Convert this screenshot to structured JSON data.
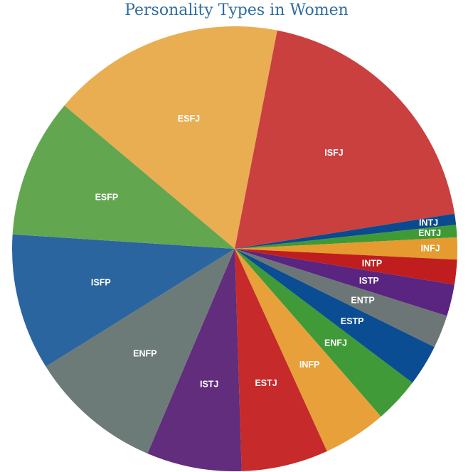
{
  "chart_data": {
    "type": "pie",
    "title": "Personality Types in Women",
    "slices": [
      {
        "label": "ISFJ",
        "value": 19.4,
        "color": "#c9403f"
      },
      {
        "label": "INTJ",
        "value": 0.8,
        "color": "#0b4a90"
      },
      {
        "label": "ENTJ",
        "value": 0.9,
        "color": "#3f9a35"
      },
      {
        "label": "INFJ",
        "value": 1.6,
        "color": "#e59b2f"
      },
      {
        "label": "INTP",
        "value": 1.8,
        "color": "#c01e1e"
      },
      {
        "label": "ISTP",
        "value": 2.3,
        "color": "#5a2580"
      },
      {
        "label": "ENTP",
        "value": 2.4,
        "color": "#6c7676"
      },
      {
        "label": "ESTP",
        "value": 3.0,
        "color": "#0a4d92"
      },
      {
        "label": "ENFJ",
        "value": 3.3,
        "color": "#3f9a37"
      },
      {
        "label": "INFP",
        "value": 4.6,
        "color": "#e8a13a"
      },
      {
        "label": "ESTJ",
        "value": 6.3,
        "color": "#c62a2a"
      },
      {
        "label": "ISTJ",
        "value": 6.9,
        "color": "#612d7c"
      },
      {
        "label": "ENFP",
        "value": 9.7,
        "color": "#6d7b78"
      },
      {
        "label": "ISFP",
        "value": 9.9,
        "color": "#2a65a0"
      },
      {
        "label": "ESFP",
        "value": 10.1,
        "color": "#62a74f"
      },
      {
        "label": "ESFJ",
        "value": 16.9,
        "color": "#e9ad52"
      }
    ]
  }
}
